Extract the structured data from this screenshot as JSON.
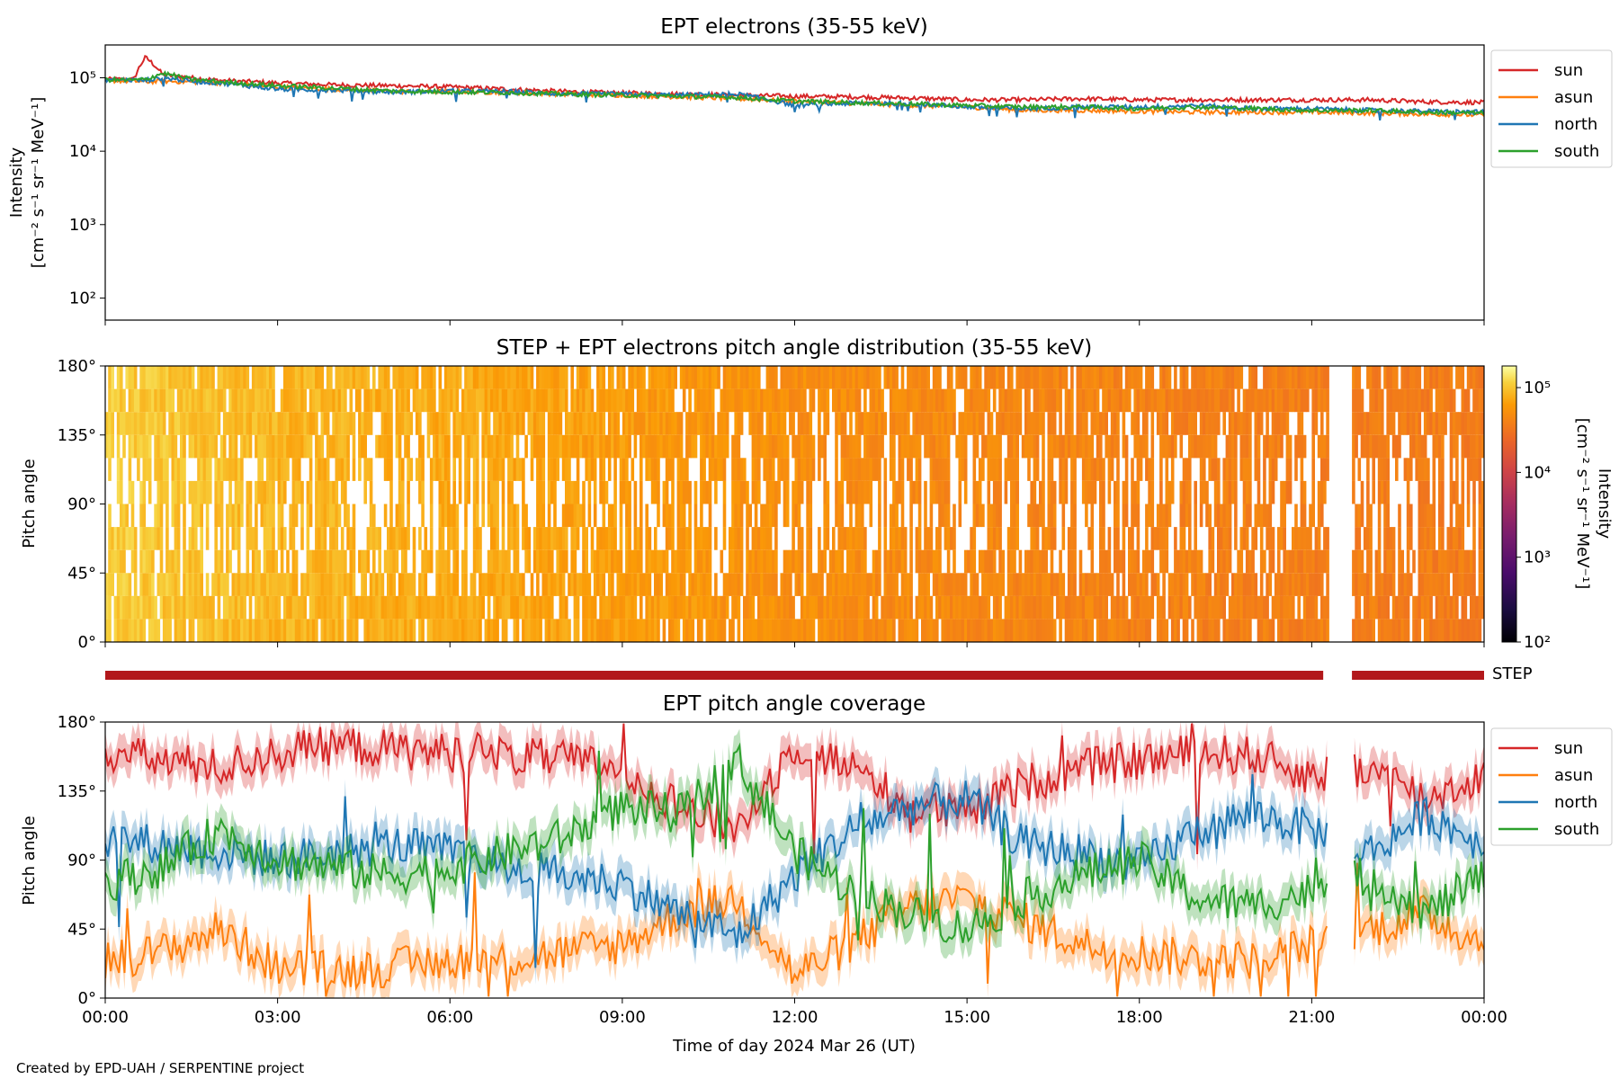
{
  "chart_data": [
    {
      "type": "line",
      "title": "EPT electrons (35-55 keV)",
      "ylabel": "Intensity",
      "ylabel_units": "[cm⁻² s⁻¹ sr⁻¹ MeV⁻¹]",
      "yscale": "log",
      "ylim": [
        50,
        280000
      ],
      "ytick_values": [
        100,
        1000,
        10000,
        100000
      ],
      "ytick_labels": [
        "10²",
        "10³",
        "10⁴",
        "10⁵"
      ],
      "x_hours": [
        0,
        0.5,
        0.7,
        1,
        1.5,
        2,
        3,
        4,
        5,
        6,
        7,
        8,
        9,
        10,
        11,
        12,
        13,
        14,
        15,
        16,
        17,
        18,
        19,
        20,
        21,
        22,
        23,
        24
      ],
      "legend_position": "outside-right",
      "series": [
        {
          "name": "sun",
          "color": "#d62728",
          "values": [
            95000,
            95000,
            190000,
            110000,
            100000,
            92000,
            85000,
            80000,
            78000,
            75000,
            70000,
            65000,
            62000,
            60000,
            58000,
            56000,
            55000,
            53000,
            50000,
            50000,
            52000,
            50000,
            50000,
            50000,
            50000,
            50000,
            47000,
            46000
          ]
        },
        {
          "name": "asun",
          "color": "#ff7f0e",
          "values": [
            92000,
            90000,
            88000,
            90000,
            88000,
            85000,
            75000,
            70000,
            65000,
            65000,
            63000,
            60000,
            58000,
            55000,
            52000,
            48000,
            45000,
            42000,
            40000,
            36000,
            36000,
            35000,
            34000,
            34000,
            34000,
            33000,
            32000,
            31000
          ]
        },
        {
          "name": "north",
          "color": "#1f77b4",
          "values": [
            95000,
            93000,
            92000,
            100000,
            90000,
            85000,
            70000,
            68000,
            64000,
            66000,
            65000,
            60000,
            60000,
            58000,
            60000,
            42000,
            45000,
            45000,
            40000,
            38000,
            40000,
            40000,
            42000,
            38000,
            38000,
            36000,
            35000,
            34000
          ]
        },
        {
          "name": "south",
          "color": "#2ca02c",
          "values": [
            94000,
            93000,
            95000,
            115000,
            95000,
            88000,
            78000,
            72000,
            66000,
            64000,
            63000,
            60000,
            58000,
            56000,
            54000,
            48000,
            46000,
            44000,
            42000,
            40000,
            40000,
            38000,
            40000,
            38000,
            36000,
            36000,
            34000,
            33000
          ]
        }
      ]
    },
    {
      "type": "heatmap",
      "title": "STEP + EPT electrons pitch angle distribution (35-55 keV)",
      "ylabel": "Pitch angle",
      "ylim": [
        0,
        180
      ],
      "ytick_values": [
        0,
        45,
        90,
        135,
        180
      ],
      "ytick_labels": [
        "0°",
        "45°",
        "90°",
        "135°",
        "180°"
      ],
      "colorbar": {
        "label": "Intensity",
        "units": "[cm⁻² s⁻¹ sr⁻¹ MeV⁻¹]",
        "scale": "log",
        "range": [
          100,
          180000
        ],
        "tick_values": [
          100,
          1000,
          10000,
          100000
        ],
        "tick_labels": [
          "10²",
          "10³",
          "10⁴",
          "10⁵"
        ],
        "colormap": "inferno"
      },
      "data_gap_hours": [
        21.3,
        21.7
      ],
      "approx_intensity_by_hour": [
        [
          0,
          110000
        ],
        [
          1,
          100000
        ],
        [
          3,
          85000
        ],
        [
          6,
          75000
        ],
        [
          9,
          62000
        ],
        [
          12,
          50000
        ],
        [
          15,
          45000
        ],
        [
          18,
          40000
        ],
        [
          21,
          38000
        ],
        [
          24,
          36000
        ]
      ]
    },
    {
      "type": "bar",
      "label": "STEP",
      "color": "#b2181b",
      "segments_hours": [
        [
          0,
          21.2
        ],
        [
          21.7,
          24
        ]
      ]
    },
    {
      "type": "line",
      "title": "EPT pitch angle coverage",
      "ylabel": "Pitch angle",
      "xlabel": "Time of day 2024 Mar 26 (UT)",
      "ylim": [
        0,
        180
      ],
      "xlim_hours": [
        0,
        24
      ],
      "ytick_values": [
        0,
        45,
        90,
        135,
        180
      ],
      "ytick_labels": [
        "0°",
        "45°",
        "90°",
        "135°",
        "180°"
      ],
      "xtick_hours": [
        0,
        3,
        6,
        9,
        12,
        15,
        18,
        21,
        24
      ],
      "xtick_labels": [
        "00:00",
        "03:00",
        "06:00",
        "09:00",
        "12:00",
        "15:00",
        "18:00",
        "21:00",
        "00:00"
      ],
      "legend_position": "outside-right",
      "data_gap_hours": [
        21.3,
        21.7
      ],
      "x_hours": [
        0,
        1,
        2,
        3,
        4,
        5,
        6,
        7,
        8,
        9,
        10,
        11,
        12,
        13,
        14,
        15,
        16,
        17,
        18,
        19,
        20,
        21,
        22,
        23,
        24
      ],
      "series": [
        {
          "name": "sun",
          "color": "#d62728",
          "values": [
            160,
            155,
            150,
            160,
            165,
            162,
            160,
            158,
            155,
            150,
            125,
            110,
            165,
            150,
            125,
            120,
            140,
            150,
            155,
            160,
            158,
            145,
            150,
            130,
            145
          ]
        },
        {
          "name": "asun",
          "color": "#ff7f0e",
          "values": [
            25,
            30,
            45,
            20,
            18,
            20,
            25,
            25,
            30,
            35,
            55,
            65,
            15,
            35,
            60,
            65,
            50,
            35,
            30,
            25,
            25,
            35,
            45,
            55,
            35
          ]
        },
        {
          "name": "north",
          "color": "#1f77b4",
          "values": [
            105,
            100,
            95,
            90,
            95,
            100,
            95,
            85,
            80,
            75,
            55,
            40,
            80,
            110,
            125,
            130,
            100,
            95,
            85,
            110,
            120,
            110,
            95,
            120,
            100
          ]
        },
        {
          "name": "south",
          "color": "#2ca02c",
          "values": [
            75,
            85,
            110,
            90,
            85,
            80,
            85,
            95,
            105,
            125,
            120,
            155,
            95,
            70,
            55,
            45,
            65,
            80,
            90,
            65,
            60,
            70,
            80,
            55,
            80
          ]
        }
      ]
    }
  ],
  "footer": {
    "credit": "Created by EPD-UAH / SERPENTINE project"
  }
}
